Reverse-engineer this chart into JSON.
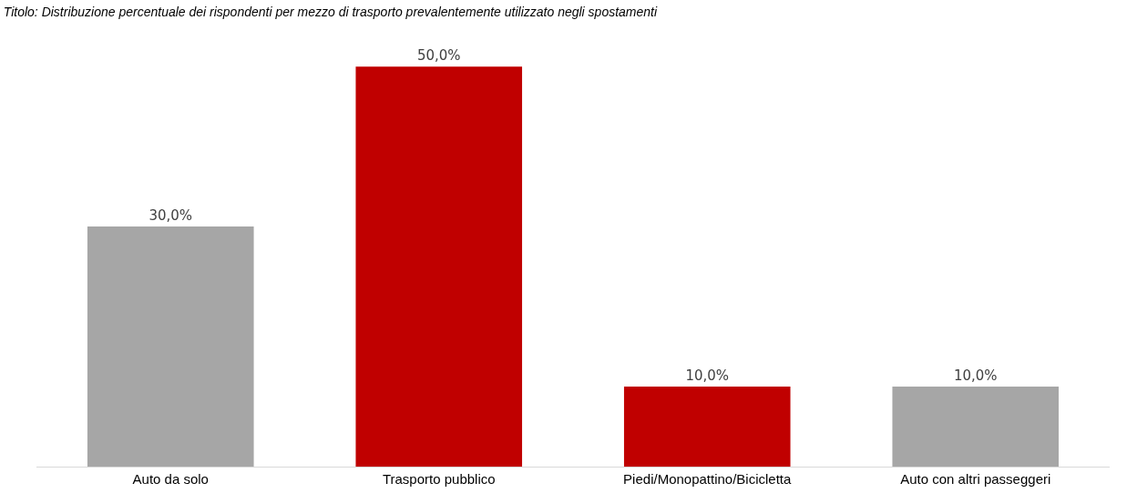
{
  "chart_data": {
    "type": "bar",
    "title": "Titolo: Distribuzione percentuale dei rispondenti per mezzo di trasporto prevalentemente utilizzato negli spostamenti",
    "categories": [
      "Auto da solo",
      "Trasporto pubblico",
      "Piedi/Monopattino/Bicicletta",
      "Auto con altri passeggeri"
    ],
    "values": [
      30,
      50,
      10,
      10
    ],
    "colors": [
      "#a6a6a6",
      "#c00000",
      "#c00000",
      "#a6a6a6"
    ],
    "value_labels": [
      "30,0%",
      "50,0%",
      "10,0%",
      "10,0%"
    ],
    "tick_labels": "x",
    "legend": false
  }
}
